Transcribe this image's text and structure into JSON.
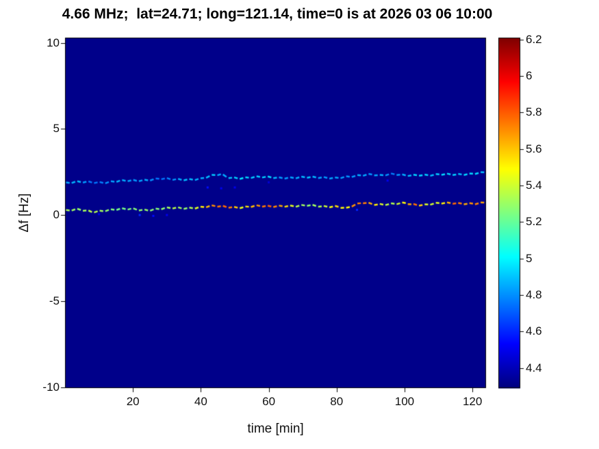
{
  "title": "4.66 MHz;  lat=24.71; long=121.14, time=0 is at 2026 03 06 10:00",
  "chart_data": {
    "type": "heatmap",
    "title": "4.66 MHz;  lat=24.71; long=121.14, time=0 is at 2026 03 06 10:00",
    "xlabel": "time [min]",
    "ylabel": "Δf [Hz]",
    "colormap": "jet",
    "xlim": [
      0,
      124
    ],
    "ylim": [
      -10.05,
      10.3
    ],
    "clim": [
      4.29,
      6.21
    ],
    "background_value": 4.31,
    "x_ticks": [
      20,
      40,
      60,
      80,
      100,
      120
    ],
    "y_ticks": [
      -10,
      -5,
      0,
      5,
      10
    ],
    "colorbar_tick_values": [
      4.4,
      4.6,
      4.8,
      5,
      5.2,
      5.4,
      5.6,
      5.8,
      6,
      6.2
    ],
    "colorbar_tick_labels": [
      "4.4",
      "4.6",
      "4.8",
      "5",
      "5.2",
      "5.4",
      "5.6",
      "5.8",
      "6",
      "6.2"
    ],
    "grid": false,
    "legend": "none",
    "traces": [
      {
        "name": "upper-doppler-trace",
        "points": [
          [
            0,
            1.85,
            4.8
          ],
          [
            4,
            1.9,
            4.85
          ],
          [
            8,
            1.92,
            4.72
          ],
          [
            12,
            1.9,
            4.8
          ],
          [
            16,
            1.95,
            4.9
          ],
          [
            20,
            2.0,
            4.85
          ],
          [
            24,
            2.05,
            4.9
          ],
          [
            28,
            2.1,
            4.78
          ],
          [
            32,
            2.05,
            4.85
          ],
          [
            36,
            2.08,
            4.92
          ],
          [
            40,
            2.1,
            4.85
          ],
          [
            44,
            2.3,
            4.9
          ],
          [
            46,
            2.35,
            4.78
          ],
          [
            48,
            2.2,
            4.85
          ],
          [
            52,
            2.15,
            4.92
          ],
          [
            56,
            2.18,
            4.85
          ],
          [
            60,
            2.2,
            4.9
          ],
          [
            64,
            2.18,
            4.78
          ],
          [
            68,
            2.15,
            4.85
          ],
          [
            72,
            2.18,
            4.92
          ],
          [
            76,
            2.2,
            4.85
          ],
          [
            80,
            2.15,
            4.9
          ],
          [
            84,
            2.2,
            4.85
          ],
          [
            87,
            2.3,
            4.92
          ],
          [
            90,
            2.4,
            4.85
          ],
          [
            93,
            2.3,
            4.9
          ],
          [
            96,
            2.35,
            4.78
          ],
          [
            100,
            2.3,
            4.85
          ],
          [
            104,
            2.35,
            4.92
          ],
          [
            108,
            2.3,
            4.85
          ],
          [
            112,
            2.35,
            4.9
          ],
          [
            116,
            2.38,
            4.85
          ],
          [
            120,
            2.4,
            4.92
          ],
          [
            124,
            2.45,
            4.85
          ]
        ]
      },
      {
        "name": "lower-doppler-trace",
        "points": [
          [
            0,
            0.25,
            5.3
          ],
          [
            4,
            0.3,
            5.25
          ],
          [
            8,
            0.2,
            5.35
          ],
          [
            12,
            0.28,
            5.3
          ],
          [
            16,
            0.32,
            5.25
          ],
          [
            20,
            0.35,
            5.3
          ],
          [
            24,
            0.3,
            5.35
          ],
          [
            28,
            0.35,
            5.3
          ],
          [
            32,
            0.4,
            5.4
          ],
          [
            36,
            0.42,
            5.3
          ],
          [
            40,
            0.45,
            5.5
          ],
          [
            44,
            0.5,
            5.7
          ],
          [
            48,
            0.48,
            5.75
          ],
          [
            52,
            0.45,
            5.4
          ],
          [
            56,
            0.5,
            5.6
          ],
          [
            60,
            0.5,
            5.75
          ],
          [
            64,
            0.55,
            5.6
          ],
          [
            68,
            0.5,
            5.35
          ],
          [
            72,
            0.55,
            5.3
          ],
          [
            76,
            0.52,
            5.4
          ],
          [
            80,
            0.5,
            5.6
          ],
          [
            83,
            0.35,
            5.5
          ],
          [
            85,
            0.55,
            5.75
          ],
          [
            88,
            0.75,
            5.8
          ],
          [
            91,
            0.65,
            5.6
          ],
          [
            94,
            0.6,
            5.4
          ],
          [
            97,
            0.62,
            5.35
          ],
          [
            100,
            0.7,
            5.5
          ],
          [
            103,
            0.62,
            5.75
          ],
          [
            106,
            0.6,
            5.4
          ],
          [
            109,
            0.65,
            5.35
          ],
          [
            112,
            0.68,
            5.5
          ],
          [
            115,
            0.7,
            5.75
          ],
          [
            118,
            0.68,
            5.6
          ],
          [
            121,
            0.65,
            5.7
          ],
          [
            124,
            0.7,
            5.6
          ]
        ]
      }
    ],
    "speckles": [
      [
        10,
        0.05,
        4.5
      ],
      [
        22,
        0.0,
        4.6
      ],
      [
        26,
        -0.05,
        4.55
      ],
      [
        30,
        0.0,
        4.5
      ],
      [
        42,
        1.6,
        4.55
      ],
      [
        46,
        1.55,
        4.5
      ],
      [
        50,
        1.6,
        4.5
      ],
      [
        60,
        1.9,
        4.45
      ],
      [
        86,
        0.3,
        4.6
      ],
      [
        95,
        2.0,
        4.5
      ]
    ]
  }
}
